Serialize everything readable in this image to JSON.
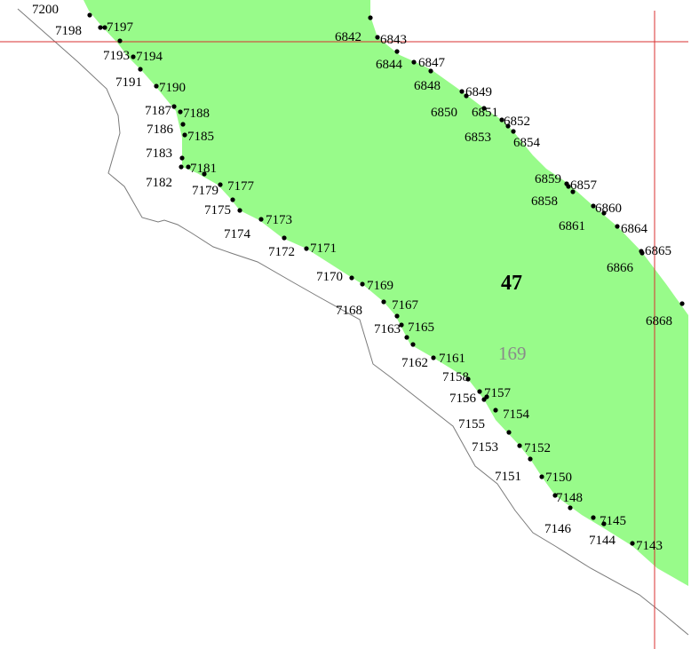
{
  "map": {
    "parcel_fill": "#98fb8a",
    "grid_line_color": "#d83030",
    "boundary_line_color": "#7a7a7a",
    "point_color": "#000000",
    "parcel_label": "47",
    "area_label": "169",
    "point_labels": [
      "7200",
      "7198",
      "7197",
      "7193",
      "7194",
      "7191",
      "7190",
      "7187",
      "7188",
      "7186",
      "7185",
      "7183",
      "7182",
      "7181",
      "7179",
      "7177",
      "7175",
      "7174",
      "7173",
      "7172",
      "7171",
      "7170",
      "7169",
      "7168",
      "7167",
      "7163",
      "7165",
      "7162",
      "7161",
      "7158",
      "7156",
      "7157",
      "7155",
      "7154",
      "7153",
      "7152",
      "7151",
      "7150",
      "7148",
      "7146",
      "7145",
      "7144",
      "7143",
      "6842",
      "6843",
      "6844",
      "6847",
      "6848",
      "6849",
      "6850",
      "6851",
      "6852",
      "6853",
      "6854",
      "6859",
      "6857",
      "6858",
      "6860",
      "6861",
      "6864",
      "6865",
      "6866",
      "6868"
    ]
  }
}
